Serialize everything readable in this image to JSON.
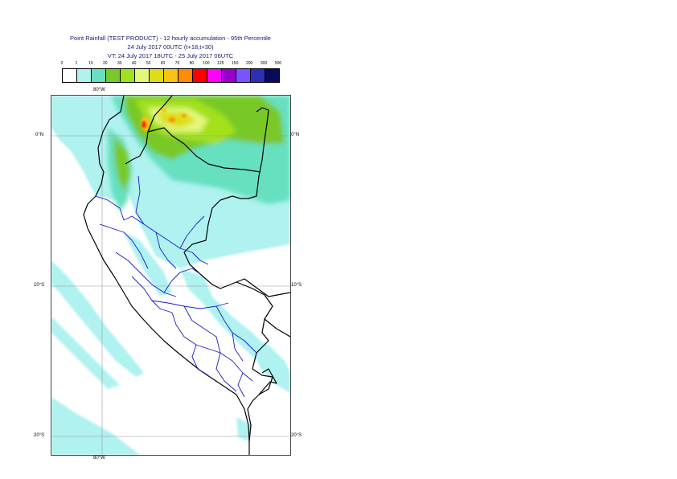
{
  "title": {
    "line1": "Point Rainfall (TEST PRODUCT) - 12 hourly accumulation - 95th Percentile",
    "line2": "24 July 2017 00UTC (t+18,t+30)",
    "line3": "VT: 24 July 2017 18UTC - 25 July 2017 06UTC"
  },
  "legend": {
    "ticks": [
      "0",
      "1",
      "10",
      "20",
      "30",
      "40",
      "50",
      "60",
      "70",
      "80",
      "100",
      "125",
      "150",
      "200",
      "300",
      "500"
    ],
    "colors": [
      "#ffffff",
      "#aff2f0",
      "#66e0bf",
      "#79c928",
      "#a3e11b",
      "#e3f77b",
      "#dede18",
      "#f6c412",
      "#ff8c00",
      "#ff0000",
      "#ff00ff",
      "#9900cc",
      "#7b52ff",
      "#2e2eb8",
      "#0a0a5c"
    ]
  },
  "map": {
    "lat_labels": [
      {
        "text": "0°N",
        "lat": 0
      },
      {
        "text": "10°S",
        "lat": -10
      },
      {
        "text": "20°S",
        "lat": -20
      }
    ],
    "lon_labels": [
      {
        "text": "80°W",
        "lon": -80
      }
    ],
    "gridlines": {
      "lats": [
        0,
        -10,
        -20
      ],
      "lons": [
        -80
      ]
    },
    "extent": {
      "lon_min": -83.4,
      "lon_max": -70.5,
      "lat_min": -21.3,
      "lat_max": 2.6
    }
  }
}
